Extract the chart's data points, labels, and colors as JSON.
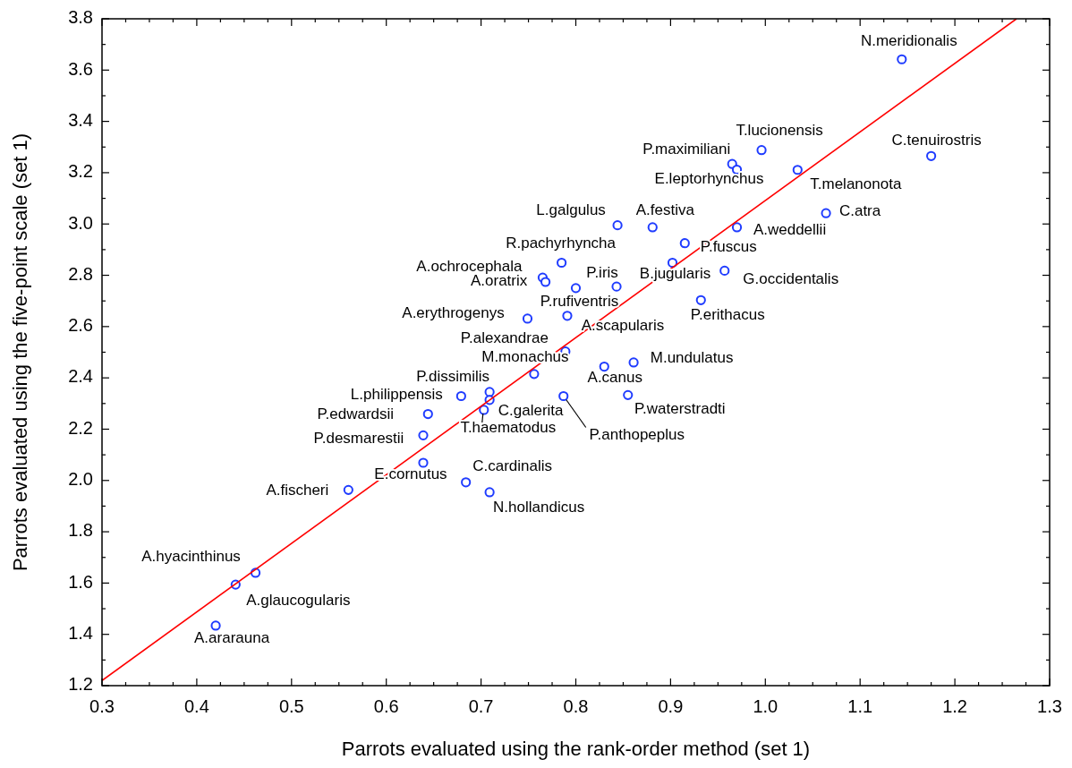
{
  "chart_data": {
    "type": "scatter",
    "xlabel": "Parrots evaluated using the rank-order method (set 1)",
    "ylabel": "Parrots evaluated using the five-point scale (set 1)",
    "xlim": [
      0.3,
      1.3
    ],
    "ylim": [
      1.2,
      3.8
    ],
    "xticks": [
      {
        "value": 0.3,
        "label": "0.3"
      },
      {
        "value": 0.325,
        "label": null
      },
      {
        "value": 0.35,
        "label": null
      },
      {
        "value": 0.375,
        "label": null
      },
      {
        "value": 0.4,
        "label": "0.4"
      },
      {
        "value": 0.425,
        "label": null
      },
      {
        "value": 0.45,
        "label": null
      },
      {
        "value": 0.475,
        "label": null
      },
      {
        "value": 0.5,
        "label": "0.5"
      },
      {
        "value": 0.525,
        "label": null
      },
      {
        "value": 0.55,
        "label": null
      },
      {
        "value": 0.575,
        "label": null
      },
      {
        "value": 0.6,
        "label": "0.6"
      },
      {
        "value": 0.625,
        "label": null
      },
      {
        "value": 0.65,
        "label": null
      },
      {
        "value": 0.675,
        "label": null
      },
      {
        "value": 0.7,
        "label": "0.7"
      },
      {
        "value": 0.725,
        "label": null
      },
      {
        "value": 0.75,
        "label": null
      },
      {
        "value": 0.775,
        "label": null
      },
      {
        "value": 0.8,
        "label": "0.8"
      },
      {
        "value": 0.825,
        "label": null
      },
      {
        "value": 0.85,
        "label": null
      },
      {
        "value": 0.875,
        "label": null
      },
      {
        "value": 0.9,
        "label": "0.9"
      },
      {
        "value": 0.925,
        "label": null
      },
      {
        "value": 0.95,
        "label": null
      },
      {
        "value": 0.975,
        "label": null
      },
      {
        "value": 1.0,
        "label": "1.0"
      },
      {
        "value": 1.025,
        "label": null
      },
      {
        "value": 1.05,
        "label": null
      },
      {
        "value": 1.075,
        "label": null
      },
      {
        "value": 1.1,
        "label": "1.1"
      },
      {
        "value": 1.125,
        "label": null
      },
      {
        "value": 1.15,
        "label": null
      },
      {
        "value": 1.175,
        "label": null
      },
      {
        "value": 1.2,
        "label": "1.2"
      },
      {
        "value": 1.225,
        "label": null
      },
      {
        "value": 1.25,
        "label": null
      },
      {
        "value": 1.275,
        "label": null
      },
      {
        "value": 1.3,
        "label": "1.3"
      }
    ],
    "yticks": [
      {
        "value": 1.2,
        "label": "1.2"
      },
      {
        "value": 1.3,
        "label": null
      },
      {
        "value": 1.4,
        "label": "1.4"
      },
      {
        "value": 1.5,
        "label": null
      },
      {
        "value": 1.6,
        "label": "1.6"
      },
      {
        "value": 1.7,
        "label": null
      },
      {
        "value": 1.8,
        "label": "1.8"
      },
      {
        "value": 1.9,
        "label": null
      },
      {
        "value": 2.0,
        "label": "2.0"
      },
      {
        "value": 2.1,
        "label": null
      },
      {
        "value": 2.2,
        "label": "2.2"
      },
      {
        "value": 2.3,
        "label": null
      },
      {
        "value": 2.4,
        "label": "2.4"
      },
      {
        "value": 2.5,
        "label": null
      },
      {
        "value": 2.6,
        "label": "2.6"
      },
      {
        "value": 2.7,
        "label": null
      },
      {
        "value": 2.8,
        "label": "2.8"
      },
      {
        "value": 2.9,
        "label": null
      },
      {
        "value": 3.0,
        "label": "3.0"
      },
      {
        "value": 3.1,
        "label": null
      },
      {
        "value": 3.2,
        "label": "3.2"
      },
      {
        "value": 3.3,
        "label": null
      },
      {
        "value": 3.4,
        "label": "3.4"
      },
      {
        "value": 3.5,
        "label": null
      },
      {
        "value": 3.6,
        "label": "3.6"
      },
      {
        "value": 3.7,
        "label": null
      },
      {
        "value": 3.8,
        "label": "3.8"
      }
    ],
    "grid": false,
    "series": [
      {
        "marker": "circle",
        "color": "#1f3cff",
        "x": [
          1.144,
          0.996,
          0.965,
          0.97,
          1.034,
          1.175,
          1.064,
          0.97,
          0.881,
          0.844,
          0.915,
          0.785,
          0.902,
          0.957,
          0.765,
          0.768,
          0.843,
          0.8,
          0.932,
          0.749,
          0.791,
          0.789,
          0.756,
          0.83,
          0.861,
          0.709,
          0.679,
          0.709,
          0.703,
          0.787,
          0.855,
          0.644,
          0.639,
          0.639,
          0.684,
          0.709,
          0.56,
          0.462,
          0.441,
          0.42
        ],
        "values": [
          3.642,
          3.288,
          3.234,
          3.212,
          3.211,
          3.265,
          3.042,
          2.987,
          2.987,
          2.995,
          2.925,
          2.849,
          2.849,
          2.818,
          2.791,
          2.774,
          2.756,
          2.75,
          2.703,
          2.631,
          2.642,
          2.503,
          2.415,
          2.444,
          2.46,
          2.345,
          2.329,
          2.314,
          2.275,
          2.329,
          2.333,
          2.259,
          2.176,
          2.069,
          1.993,
          1.954,
          1.963,
          1.64,
          1.594,
          1.434
        ]
      },
      {
        "type": "line",
        "color": "#ff0000",
        "x": [
          0.3,
          1.265
        ],
        "values": [
          1.22,
          3.8
        ]
      }
    ],
    "annotations": [
      {
        "text": "N.meridionalis",
        "x": 1.144,
        "y": 3.642
      },
      {
        "text": "T.lucionensis",
        "x": 0.996,
        "y": 3.288
      },
      {
        "text": "P.maximiliani",
        "x": 0.965,
        "y": 3.234
      },
      {
        "text": "E.leptorhynchus",
        "x": 0.97,
        "y": 3.212
      },
      {
        "text": "T.melanonota",
        "x": 1.034,
        "y": 3.211
      },
      {
        "text": "C.tenuirostris",
        "x": 1.175,
        "y": 3.265
      },
      {
        "text": "C.atra",
        "x": 1.064,
        "y": 3.042
      },
      {
        "text": "A.weddellii",
        "x": 0.97,
        "y": 2.987
      },
      {
        "text": "A.festiva",
        "x": 0.881,
        "y": 2.987
      },
      {
        "text": "L.galgulus",
        "x": 0.844,
        "y": 2.995
      },
      {
        "text": "P.fuscus",
        "x": 0.915,
        "y": 2.925
      },
      {
        "text": "R.pachyrhyncha",
        "x": 0.785,
        "y": 2.849
      },
      {
        "text": "B.jugularis",
        "x": 0.902,
        "y": 2.849
      },
      {
        "text": "G.occidentalis",
        "x": 0.957,
        "y": 2.818
      },
      {
        "text": "A.ochrocephala",
        "x": 0.765,
        "y": 2.791
      },
      {
        "text": "A.oratrix",
        "x": 0.768,
        "y": 2.774
      },
      {
        "text": "P.iris",
        "x": 0.843,
        "y": 2.756
      },
      {
        "text": "P.rufiventris",
        "x": 0.8,
        "y": 2.75
      },
      {
        "text": "P.erithacus",
        "x": 0.932,
        "y": 2.703
      },
      {
        "text": "A.erythrogenys",
        "x": 0.749,
        "y": 2.631
      },
      {
        "text": "A.scapularis",
        "x": 0.791,
        "y": 2.642
      },
      {
        "text": "P.alexandrae",
        "x": 0.789,
        "y": 2.503
      },
      {
        "text": "M.monachus",
        "x": 0.756,
        "y": 2.415
      },
      {
        "text": "A.canus",
        "x": 0.83,
        "y": 2.444
      },
      {
        "text": "M.undulatus",
        "x": 0.861,
        "y": 2.46
      },
      {
        "text": "P.dissimilis",
        "x": 0.709,
        "y": 2.345
      },
      {
        "text": "L.philippensis",
        "x": 0.679,
        "y": 2.329
      },
      {
        "text": "C.galerita",
        "x": 0.709,
        "y": 2.314
      },
      {
        "text": "T.haematodus",
        "x": 0.703,
        "y": 2.275
      },
      {
        "text": "P.anthopeplus",
        "x": 0.787,
        "y": 2.329
      },
      {
        "text": "P.waterstradti",
        "x": 0.855,
        "y": 2.333
      },
      {
        "text": "P.edwardsii",
        "x": 0.644,
        "y": 2.259
      },
      {
        "text": "P.desmarestii",
        "x": 0.639,
        "y": 2.176
      },
      {
        "text": "E.cornutus",
        "x": 0.639,
        "y": 2.069
      },
      {
        "text": "C.cardinalis",
        "x": 0.684,
        "y": 1.993
      },
      {
        "text": "N.hollandicus",
        "x": 0.709,
        "y": 1.954
      },
      {
        "text": "A.fischeri",
        "x": 0.56,
        "y": 1.963
      },
      {
        "text": "A.hyacinthinus",
        "x": 0.462,
        "y": 1.64
      },
      {
        "text": "A.glaucogularis",
        "x": 0.441,
        "y": 1.594
      },
      {
        "text": "A.ararauna",
        "x": 0.42,
        "y": 1.434
      }
    ]
  }
}
